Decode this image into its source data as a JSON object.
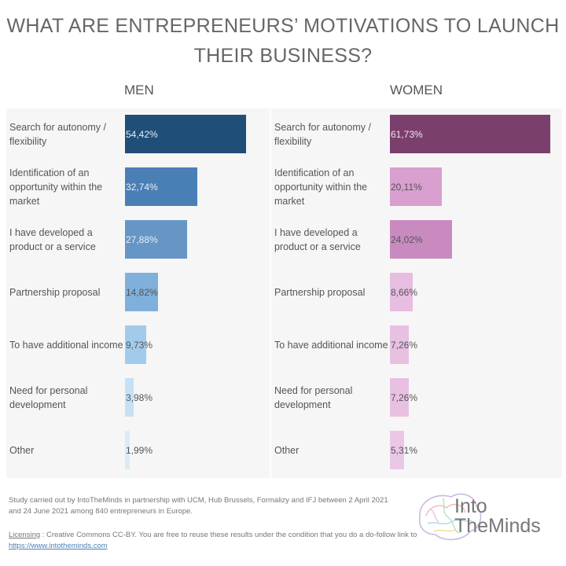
{
  "chart_data": {
    "type": "bar",
    "title": "WHAT ARE ENTREPRENEURS’ MOTIVATIONS TO LAUNCH THEIR BUSINESS?",
    "categories": [
      "Search for autonomy / flexibility",
      "Identification of an opportunity within the market",
      "I have developed a product or a service",
      "Partnership proposal",
      "To have additional income",
      "Need for personal development",
      "Other"
    ],
    "series": [
      {
        "name": "MEN",
        "values": [
          54.42,
          32.74,
          27.88,
          14.82,
          9.73,
          3.98,
          1.99
        ],
        "labels": [
          "54,42%",
          "32,74%",
          "27,88%",
          "14,82%",
          "9,73%",
          "3,98%",
          "1,99%"
        ],
        "colors": [
          "#1f4e79",
          "#4a7fb5",
          "#6596c6",
          "#7fb0dc",
          "#a2cbeb",
          "#c6e1f5",
          "#d9ebf8"
        ]
      },
      {
        "name": "WOMEN",
        "values": [
          61.73,
          20.11,
          24.02,
          8.66,
          7.26,
          7.26,
          5.31
        ],
        "labels": [
          "61,73%",
          "20,11%",
          "24,02%",
          "8,66%",
          "7,26%",
          "7,26%",
          "5,31%"
        ],
        "colors": [
          "#7b3f6e",
          "#d89fcf",
          "#c98bbf",
          "#e7bde1",
          "#e8c0e2",
          "#e8c0e2",
          "#ebc7e6"
        ]
      }
    ],
    "xlim": [
      0,
      62
    ],
    "grid": false,
    "legend": "none"
  },
  "footer": {
    "note": "Study carried out by IntoTheMinds in partnership with UCM, Hub Brussels, Formalizy and IFJ between 2 April 2021 and 24 June 2021 among 840 entrepreneurs in Europe.",
    "license_label": "Licensing",
    "license_text": " : Creative Commons CC-BY. You are free to reuse these results under the condition that you do a do-follow link to ",
    "license_link": "https://www.intotheminds.com"
  },
  "logo": {
    "line1": "Into",
    "line2": "TheMinds"
  }
}
